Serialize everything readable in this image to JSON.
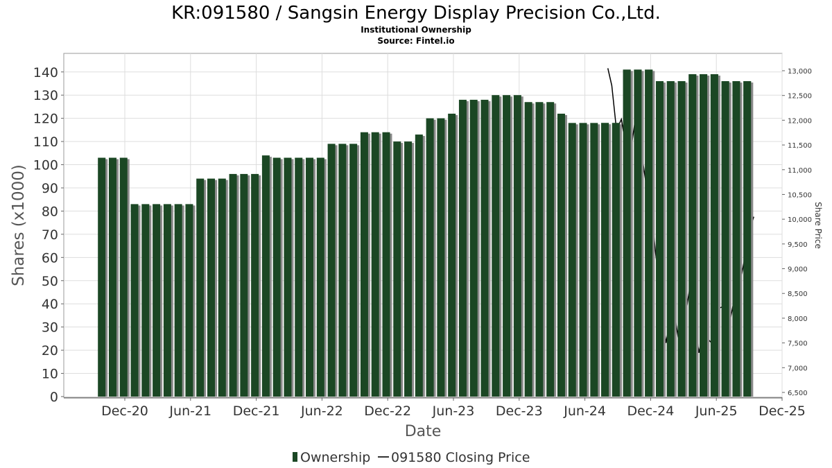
{
  "chart_data": {
    "type": "bar",
    "title": "KR:091580 / Sangsin Energy Display Precision Co.,Ltd.",
    "subtitles": [
      "Institutional Ownership",
      "Source: Fintel.io"
    ],
    "xlabel": "Date",
    "ylabel": "Shares (x1000)",
    "y2label": "Share Price",
    "x_ticks": [
      "Dec-20",
      "Jun-21",
      "Dec-21",
      "Jun-22",
      "Dec-22",
      "Jun-23",
      "Dec-23",
      "Jun-24",
      "Dec-24",
      "Jun-25",
      "Dec-25"
    ],
    "ylim": [
      0,
      148
    ],
    "y_ticks": [
      0,
      10,
      20,
      30,
      40,
      50,
      60,
      70,
      80,
      90,
      100,
      110,
      120,
      130,
      140
    ],
    "y2lim": [
      6400,
      13200
    ],
    "y2_ticks": [
      "6,500",
      "7,000",
      "7,500",
      "8,000",
      "8,500",
      "9,000",
      "9,500",
      "10,000",
      "10,500",
      "11,000",
      "11,500",
      "12,000",
      "12,500",
      "13,000"
    ],
    "grid": true,
    "legend_position": "bottom",
    "colors": {
      "bar": "#1b4724",
      "bar_shadow": "#8a8a8a",
      "line": "#000000",
      "grid": "#dddddd"
    },
    "series": [
      {
        "name": "Ownership",
        "type": "bar",
        "start": "2020-10",
        "interval": "month",
        "values": [
          103,
          103,
          103,
          83,
          83,
          83,
          83,
          83,
          83,
          94,
          94,
          94,
          96,
          96,
          96,
          104,
          103,
          103,
          103,
          103,
          103,
          109,
          109,
          109,
          114,
          114,
          114,
          110,
          110,
          113,
          120,
          120,
          122,
          128,
          128,
          128,
          130,
          130,
          130,
          127,
          127,
          127,
          122,
          118,
          118,
          118,
          118,
          118,
          141,
          141,
          141,
          136,
          136,
          136,
          139,
          139,
          139,
          136,
          136,
          136
        ]
      },
      {
        "name": "091580 Closing Price",
        "type": "line",
        "points": [
          [
            "2024-07-01",
            13050
          ],
          [
            "2024-07-12",
            12700
          ],
          [
            "2024-07-25",
            11800
          ],
          [
            "2024-08-08",
            12020
          ],
          [
            "2024-08-20",
            11500
          ],
          [
            "2024-09-02",
            11300
          ],
          [
            "2024-09-14",
            11900
          ],
          [
            "2024-09-25",
            11850
          ],
          [
            "2024-10-08",
            11100
          ],
          [
            "2024-10-20",
            10500
          ],
          [
            "2024-11-01",
            10100
          ],
          [
            "2024-11-12",
            9300
          ],
          [
            "2024-11-25",
            8500
          ],
          [
            "2024-12-10",
            7500
          ],
          [
            "2024-12-20",
            7900
          ],
          [
            "2025-01-05",
            8000
          ],
          [
            "2025-01-20",
            7300
          ],
          [
            "2025-02-05",
            8150
          ],
          [
            "2025-02-15",
            8600
          ],
          [
            "2025-02-28",
            8000
          ],
          [
            "2025-03-10",
            7300
          ],
          [
            "2025-03-20",
            7650
          ],
          [
            "2025-04-01",
            7600
          ],
          [
            "2025-04-15",
            7500
          ],
          [
            "2025-05-05",
            8200
          ],
          [
            "2025-05-20",
            8250
          ],
          [
            "2025-06-05",
            7950
          ],
          [
            "2025-06-20",
            8500
          ],
          [
            "2025-07-05",
            8800
          ],
          [
            "2025-07-20",
            9400
          ],
          [
            "2025-08-01",
            9850
          ],
          [
            "2025-08-10",
            10050
          ]
        ]
      }
    ]
  }
}
